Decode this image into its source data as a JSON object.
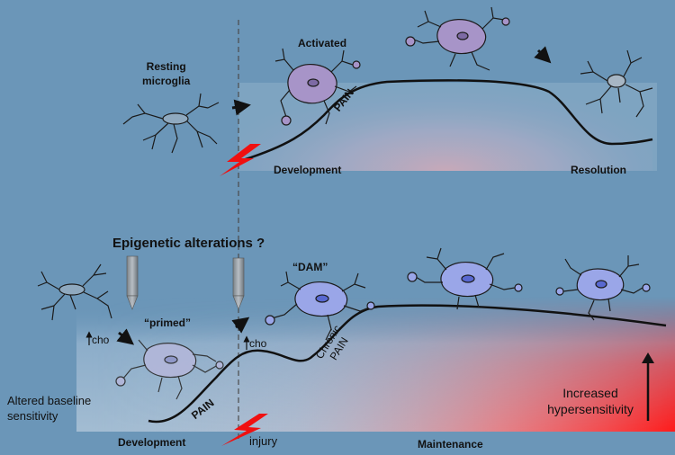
{
  "top_panel": {
    "resting_label": [
      "Resting",
      "microglia"
    ],
    "activated_label": "Activated",
    "pain_label": "PAIN",
    "development_label": "Development",
    "resolution_label": "Resolution"
  },
  "bottom_panel": {
    "epigenetic_label": "Epigenetic alterations ?",
    "dam_label": "“DAM”",
    "primed_label": "“primed”",
    "cho_left": "cho",
    "cho_right": "cho",
    "chronic_pain_label": [
      "Chronic",
      "PAIN"
    ],
    "pain_label": "PAIN",
    "altered_baseline_label": [
      "Altered baseline",
      "sensitivity"
    ],
    "increased_label": [
      "Increased",
      "hypersensitivity"
    ],
    "development_label": "Development",
    "injury_label": "injury",
    "maintenance_label": "Maintenance"
  },
  "colors": {
    "background": "#6b96b8",
    "activated_cell": "#a794c8",
    "dam_cell": "#9aa6e8",
    "primed_cell": "#b3b7da",
    "hypersensitivity_red": "#ff1a1a",
    "lightning_red": "#f01010"
  },
  "icons": [
    "lightning-bolt-icon",
    "arrow-icon",
    "up-arrow-icon",
    "epigenetic-pin-icon"
  ]
}
